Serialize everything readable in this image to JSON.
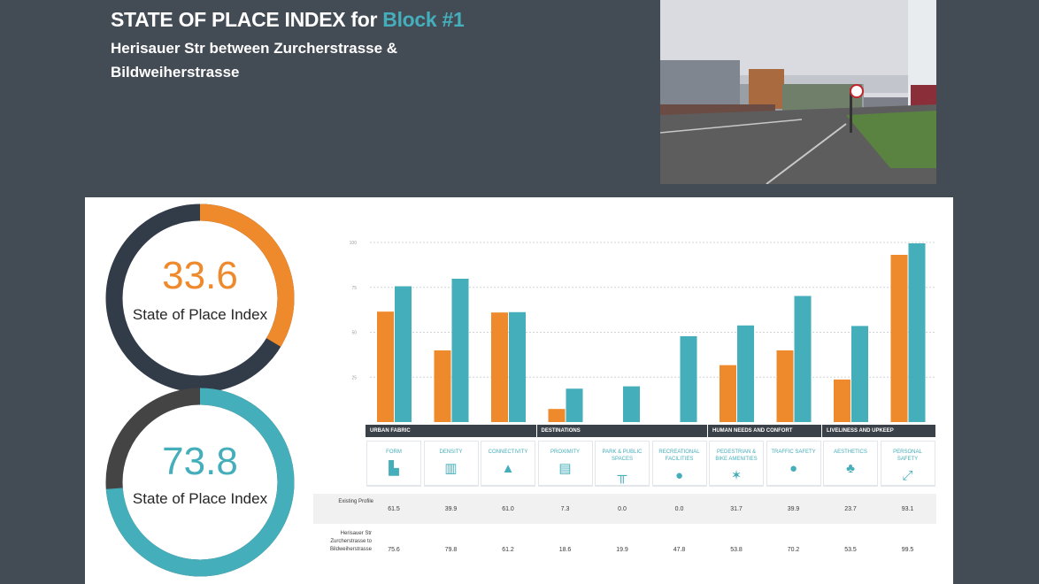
{
  "header": {
    "title_prefix": "STATE OF PLACE INDEX for ",
    "title_block": "Block #1",
    "subtitle": "Herisauer Str between Zurcherstrasse & Bildweiherstrasse"
  },
  "photo": {
    "alt": "street photo"
  },
  "scores": [
    {
      "value": "33.6",
      "label": "State of Place Index",
      "fraction": 0.336,
      "color": "#ef8a2c",
      "track": "#323c48"
    },
    {
      "value": "73.8",
      "label": "State of Place Index",
      "fraction": 0.738,
      "color": "#45aebb",
      "track": "#444444"
    }
  ],
  "chart_data": {
    "type": "bar",
    "ylim": [
      0,
      100
    ],
    "yticks": [
      "100",
      "75",
      "50",
      "25"
    ],
    "yticks_values": [
      100,
      75,
      50,
      25
    ],
    "categories": [
      "FORM",
      "DENSITY",
      "CONNECTIVITY",
      "PROXIMITY",
      "PARK & PUBLIC SPACES",
      "RECREATIONAL FACILITIES",
      "PEDESTRIAN & BIKE AMENITIES",
      "TRAFFIC SAFETY",
      "AESTHETICS",
      "PERSONAL SAFETY"
    ],
    "icons": [
      "building-icon",
      "density-icon",
      "road-icon",
      "store-icon",
      "bench-icon",
      "ball-icon",
      "pedestrian-icon",
      "traffic-icon",
      "tree-icon",
      "flashlight-icon"
    ],
    "icon_glyphs": [
      "▙",
      "▥",
      "▲",
      "▤",
      "╥",
      "●",
      "✶",
      "●",
      "♣",
      "⤢"
    ],
    "groups": [
      {
        "name": "URBAN FABRIC",
        "span": 3
      },
      {
        "name": "DESTINATIONS",
        "span": 3
      },
      {
        "name": "HUMAN NEEDS AND CONFORT",
        "span": 2
      },
      {
        "name": "LIVELINESS AND UPKEEP",
        "span": 2
      }
    ],
    "series": [
      {
        "name": "Existing Profile",
        "color": "#ef8a2c",
        "values": [
          61.5,
          39.9,
          61.0,
          7.3,
          0.0,
          0.0,
          31.7,
          39.9,
          23.7,
          93.1
        ],
        "labels": [
          "61.5",
          "39.9",
          "61.0",
          "7.3",
          "0.0",
          "0.0",
          "31.7",
          "39.9",
          "23.7",
          "93.1"
        ]
      },
      {
        "name": "Herisauer Str Zurcherstrasse to Bildweiherstrasse",
        "color": "#45aebb",
        "values": [
          75.6,
          79.8,
          61.2,
          18.6,
          19.9,
          47.8,
          53.8,
          70.2,
          53.5,
          99.5
        ],
        "labels": [
          "75.6",
          "79.8",
          "61.2",
          "18.6",
          "19.9",
          "47.8",
          "53.8",
          "70.2",
          "53.5",
          "99.5"
        ]
      }
    ]
  }
}
